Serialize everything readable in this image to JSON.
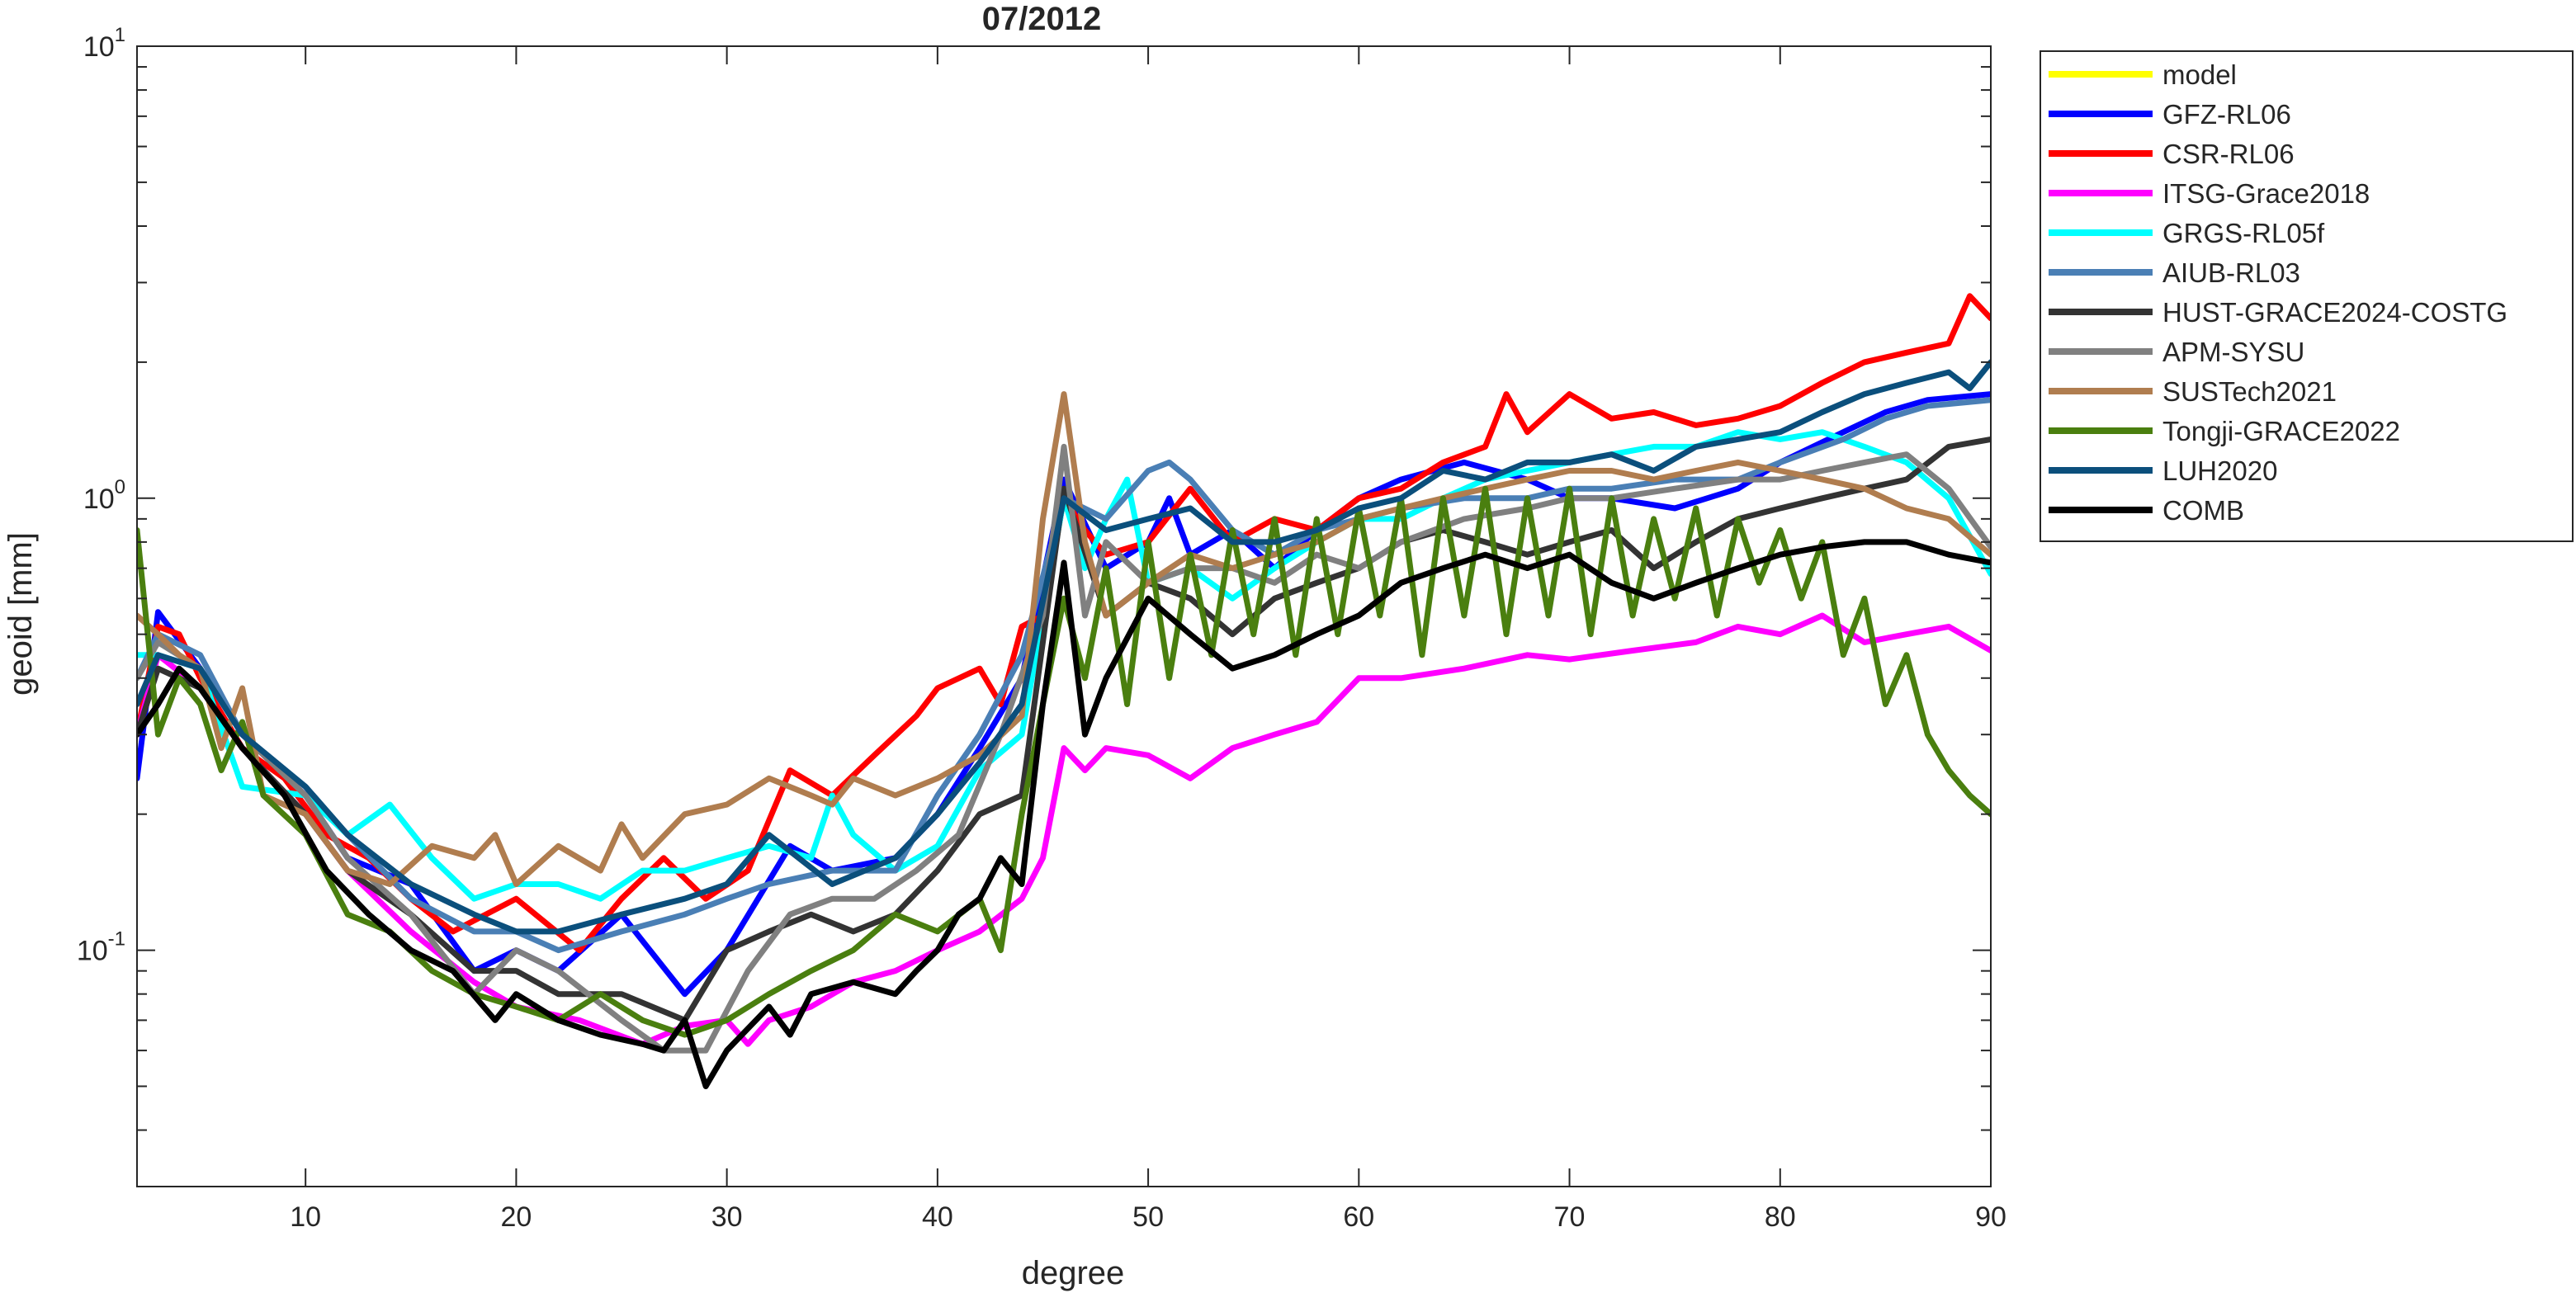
{
  "chart_data": {
    "type": "line",
    "title": "07/2012",
    "xlabel": "degree",
    "ylabel": "geoid [mm]",
    "xlim": [
      2,
      90
    ],
    "ylim": [
      0.03,
      10
    ],
    "yscale": "log",
    "grid": false,
    "legend_position": "outside-right-top",
    "xticks": [
      {
        "value": 10,
        "label": "10"
      },
      {
        "value": 20,
        "label": "20"
      },
      {
        "value": 30,
        "label": "30"
      },
      {
        "value": 40,
        "label": "40"
      },
      {
        "value": 50,
        "label": "50"
      },
      {
        "value": 60,
        "label": "60"
      },
      {
        "value": 70,
        "label": "70"
      },
      {
        "value": 80,
        "label": "80"
      },
      {
        "value": 90,
        "label": "90"
      }
    ],
    "yticks": [
      {
        "value": 0.1,
        "base": "10",
        "exp": "-1"
      },
      {
        "value": 1,
        "base": "10",
        "exp": "0"
      },
      {
        "value": 10,
        "base": "10",
        "exp": "1"
      }
    ],
    "series": [
      {
        "name": "model",
        "color": "#FFFF00",
        "x": [],
        "y": []
      },
      {
        "name": "GFZ-RL06",
        "color": "#0000FF",
        "x": [
          2,
          3,
          5,
          7,
          10,
          12,
          15,
          18,
          20,
          22,
          25,
          28,
          30,
          33,
          35,
          38,
          40,
          42,
          44,
          46,
          48,
          50,
          51,
          52,
          54,
          56,
          58,
          60,
          62,
          65,
          68,
          70,
          72,
          75,
          78,
          80,
          83,
          85,
          87,
          90
        ],
        "y": [
          0.24,
          0.56,
          0.42,
          0.3,
          0.22,
          0.16,
          0.14,
          0.09,
          0.1,
          0.09,
          0.12,
          0.08,
          0.1,
          0.17,
          0.15,
          0.16,
          0.2,
          0.28,
          0.4,
          1.1,
          0.7,
          0.8,
          1.0,
          0.75,
          0.85,
          0.7,
          0.85,
          1.0,
          1.1,
          1.2,
          1.1,
          1.0,
          1.0,
          0.95,
          1.05,
          1.2,
          1.4,
          1.55,
          1.65,
          1.7
        ]
      },
      {
        "name": "CSR-RL06",
        "color": "#FF0000",
        "x": [
          2,
          3,
          4,
          5,
          7,
          9,
          11,
          13,
          15,
          17,
          20,
          23,
          25,
          27,
          29,
          31,
          33,
          35,
          37,
          39,
          40,
          42,
          43,
          44,
          45,
          46,
          47,
          48,
          50,
          52,
          54,
          56,
          58,
          60,
          62,
          64,
          66,
          67,
          68,
          70,
          72,
          74,
          76,
          78,
          80,
          82,
          84,
          86,
          88,
          89,
          90
        ],
        "y": [
          0.3,
          0.52,
          0.5,
          0.4,
          0.28,
          0.24,
          0.18,
          0.16,
          0.13,
          0.11,
          0.13,
          0.1,
          0.13,
          0.16,
          0.13,
          0.15,
          0.25,
          0.22,
          0.27,
          0.33,
          0.38,
          0.42,
          0.35,
          0.52,
          0.55,
          1.0,
          0.85,
          0.75,
          0.8,
          1.05,
          0.8,
          0.9,
          0.85,
          1.0,
          1.05,
          1.2,
          1.3,
          1.7,
          1.4,
          1.7,
          1.5,
          1.55,
          1.45,
          1.5,
          1.6,
          1.8,
          2.0,
          2.1,
          2.2,
          2.8,
          2.5
        ]
      },
      {
        "name": "ITSG-Grace2018",
        "color": "#FF00FF",
        "x": [
          2,
          3,
          5,
          7,
          10,
          12,
          15,
          18,
          20,
          23,
          26,
          28,
          30,
          31,
          32,
          34,
          36,
          38,
          40,
          42,
          44,
          45,
          46,
          47,
          48,
          50,
          52,
          54,
          56,
          58,
          60,
          62,
          65,
          68,
          70,
          73,
          76,
          78,
          80,
          82,
          84,
          86,
          88,
          90
        ],
        "y": [
          0.3,
          0.45,
          0.38,
          0.28,
          0.2,
          0.15,
          0.11,
          0.085,
          0.075,
          0.07,
          0.062,
          0.068,
          0.07,
          0.062,
          0.07,
          0.075,
          0.085,
          0.09,
          0.1,
          0.11,
          0.13,
          0.16,
          0.28,
          0.25,
          0.28,
          0.27,
          0.24,
          0.28,
          0.3,
          0.32,
          0.4,
          0.4,
          0.42,
          0.45,
          0.44,
          0.46,
          0.48,
          0.52,
          0.5,
          0.55,
          0.48,
          0.5,
          0.52,
          0.46
        ]
      },
      {
        "name": "GRGS-RL05f",
        "color": "#00FFFF",
        "x": [
          2,
          3,
          5,
          7,
          10,
          12,
          14,
          16,
          18,
          20,
          22,
          24,
          26,
          28,
          30,
          32,
          34,
          35,
          36,
          38,
          40,
          42,
          44,
          46,
          47,
          48,
          49,
          50,
          52,
          54,
          56,
          58,
          60,
          62,
          64,
          66,
          68,
          70,
          72,
          74,
          76,
          78,
          80,
          82,
          84,
          86,
          88,
          90
        ],
        "y": [
          0.45,
          0.45,
          0.42,
          0.23,
          0.22,
          0.18,
          0.21,
          0.16,
          0.13,
          0.14,
          0.14,
          0.13,
          0.15,
          0.15,
          0.16,
          0.17,
          0.16,
          0.22,
          0.18,
          0.15,
          0.17,
          0.25,
          0.3,
          1.0,
          0.7,
          0.9,
          1.1,
          0.65,
          0.7,
          0.6,
          0.7,
          0.8,
          0.9,
          0.9,
          1.0,
          1.1,
          1.15,
          1.2,
          1.25,
          1.3,
          1.3,
          1.4,
          1.35,
          1.4,
          1.3,
          1.2,
          1.0,
          0.68
        ]
      },
      {
        "name": "AIUB-RL03",
        "color": "#4A7FB5",
        "x": [
          2,
          3,
          5,
          7,
          10,
          12,
          15,
          18,
          20,
          22,
          25,
          28,
          30,
          32,
          35,
          38,
          40,
          42,
          44,
          46,
          48,
          50,
          51,
          52,
          54,
          56,
          58,
          60,
          62,
          65,
          68,
          70,
          72,
          75,
          78,
          80,
          83,
          85,
          87,
          90
        ],
        "y": [
          0.4,
          0.5,
          0.45,
          0.3,
          0.23,
          0.18,
          0.13,
          0.11,
          0.11,
          0.1,
          0.11,
          0.12,
          0.13,
          0.14,
          0.15,
          0.15,
          0.22,
          0.3,
          0.45,
          1.0,
          0.9,
          1.15,
          1.2,
          1.1,
          0.85,
          0.75,
          0.85,
          0.9,
          0.95,
          1.0,
          1.0,
          1.05,
          1.05,
          1.1,
          1.1,
          1.2,
          1.35,
          1.5,
          1.6,
          1.65
        ]
      },
      {
        "name": "HUST-GRACE2024-COSTG",
        "color": "#333333",
        "x": [
          2,
          3,
          5,
          7,
          10,
          12,
          15,
          18,
          20,
          22,
          25,
          28,
          30,
          32,
          34,
          36,
          38,
          40,
          42,
          44,
          46,
          48,
          50,
          52,
          54,
          56,
          58,
          60,
          62,
          64,
          66,
          68,
          70,
          72,
          74,
          76,
          78,
          80,
          82,
          84,
          86,
          88,
          90
        ],
        "y": [
          0.3,
          0.42,
          0.38,
          0.28,
          0.2,
          0.15,
          0.12,
          0.09,
          0.09,
          0.08,
          0.08,
          0.07,
          0.1,
          0.11,
          0.12,
          0.11,
          0.12,
          0.15,
          0.2,
          0.22,
          1.05,
          0.55,
          0.65,
          0.6,
          0.5,
          0.6,
          0.65,
          0.7,
          0.8,
          0.85,
          0.8,
          0.75,
          0.8,
          0.85,
          0.7,
          0.8,
          0.9,
          0.95,
          1.0,
          1.05,
          1.1,
          1.3,
          1.35
        ]
      },
      {
        "name": "APM-SYSU",
        "color": "#808080",
        "x": [
          2,
          3,
          5,
          7,
          10,
          12,
          15,
          18,
          20,
          22,
          25,
          27,
          29,
          31,
          33,
          35,
          37,
          39,
          41,
          43,
          45,
          46,
          47,
          48,
          50,
          52,
          54,
          56,
          58,
          60,
          62,
          65,
          68,
          70,
          72,
          75,
          78,
          80,
          82,
          84,
          86,
          88,
          90
        ],
        "y": [
          0.4,
          0.48,
          0.42,
          0.3,
          0.22,
          0.16,
          0.12,
          0.08,
          0.1,
          0.09,
          0.07,
          0.06,
          0.06,
          0.09,
          0.12,
          0.13,
          0.13,
          0.15,
          0.18,
          0.3,
          0.55,
          1.3,
          0.55,
          0.8,
          0.65,
          0.7,
          0.7,
          0.65,
          0.75,
          0.7,
          0.8,
          0.9,
          0.95,
          1.0,
          1.0,
          1.05,
          1.1,
          1.1,
          1.15,
          1.2,
          1.25,
          1.05,
          0.78
        ]
      },
      {
        "name": "SUSTech2021",
        "color": "#B07D4F",
        "x": [
          2,
          3,
          4,
          5,
          6,
          7,
          8,
          10,
          12,
          14,
          16,
          18,
          19,
          20,
          22,
          24,
          25,
          26,
          28,
          30,
          32,
          34,
          35,
          36,
          38,
          40,
          42,
          44,
          45,
          46,
          47,
          48,
          50,
          52,
          54,
          56,
          58,
          60,
          62,
          64,
          66,
          68,
          70,
          72,
          74,
          76,
          78,
          80,
          82,
          84,
          86,
          88,
          90
        ],
        "y": [
          0.55,
          0.5,
          0.45,
          0.42,
          0.28,
          0.38,
          0.22,
          0.2,
          0.15,
          0.14,
          0.17,
          0.16,
          0.18,
          0.14,
          0.17,
          0.15,
          0.19,
          0.16,
          0.2,
          0.21,
          0.24,
          0.22,
          0.21,
          0.24,
          0.22,
          0.24,
          0.27,
          0.33,
          0.9,
          1.7,
          0.8,
          0.55,
          0.65,
          0.75,
          0.7,
          0.75,
          0.8,
          0.9,
          0.95,
          1.0,
          1.05,
          1.1,
          1.15,
          1.15,
          1.1,
          1.15,
          1.2,
          1.15,
          1.1,
          1.05,
          0.95,
          0.9,
          0.75
        ]
      },
      {
        "name": "Tongji-GRACE2022",
        "color": "#4A7F0F",
        "x": [
          2,
          3,
          4,
          5,
          6,
          7,
          8,
          10,
          12,
          14,
          16,
          18,
          20,
          22,
          24,
          26,
          28,
          30,
          32,
          34,
          36,
          38,
          40,
          42,
          43,
          44,
          45,
          46,
          47,
          48,
          49,
          50,
          51,
          52,
          53,
          54,
          55,
          56,
          57,
          58,
          59,
          60,
          61,
          62,
          63,
          64,
          65,
          66,
          67,
          68,
          69,
          70,
          71,
          72,
          73,
          74,
          75,
          76,
          77,
          78,
          79,
          80,
          81,
          82,
          83,
          84,
          85,
          86,
          87,
          88,
          89,
          90
        ],
        "y": [
          0.85,
          0.3,
          0.4,
          0.35,
          0.25,
          0.32,
          0.22,
          0.18,
          0.12,
          0.11,
          0.09,
          0.08,
          0.075,
          0.07,
          0.08,
          0.07,
          0.065,
          0.07,
          0.08,
          0.09,
          0.1,
          0.12,
          0.11,
          0.13,
          0.1,
          0.2,
          0.35,
          0.6,
          0.4,
          0.7,
          0.35,
          0.8,
          0.4,
          0.75,
          0.45,
          0.85,
          0.5,
          0.9,
          0.45,
          0.9,
          0.5,
          0.95,
          0.55,
          1.0,
          0.45,
          1.0,
          0.55,
          1.05,
          0.5,
          1.0,
          0.55,
          1.05,
          0.5,
          1.0,
          0.55,
          0.9,
          0.6,
          0.95,
          0.55,
          0.9,
          0.65,
          0.85,
          0.6,
          0.8,
          0.45,
          0.6,
          0.35,
          0.45,
          0.3,
          0.25,
          0.22,
          0.2
        ]
      },
      {
        "name": "LUH2020",
        "color": "#0B4F7C",
        "x": [
          2,
          3,
          5,
          7,
          10,
          12,
          15,
          18,
          20,
          22,
          25,
          28,
          30,
          32,
          35,
          38,
          40,
          42,
          44,
          46,
          48,
          50,
          52,
          54,
          56,
          58,
          60,
          62,
          64,
          66,
          68,
          70,
          72,
          74,
          76,
          78,
          80,
          82,
          84,
          86,
          88,
          89,
          90
        ],
        "y": [
          0.35,
          0.45,
          0.42,
          0.3,
          0.23,
          0.18,
          0.14,
          0.12,
          0.11,
          0.11,
          0.12,
          0.13,
          0.14,
          0.18,
          0.14,
          0.16,
          0.2,
          0.26,
          0.35,
          1.0,
          0.85,
          0.9,
          0.95,
          0.8,
          0.8,
          0.85,
          0.95,
          1.0,
          1.15,
          1.1,
          1.2,
          1.2,
          1.25,
          1.15,
          1.3,
          1.35,
          1.4,
          1.55,
          1.7,
          1.8,
          1.9,
          1.75,
          2.0
        ]
      },
      {
        "name": "COMB",
        "color": "#000000",
        "x": [
          2,
          3,
          4,
          5,
          7,
          9,
          11,
          13,
          15,
          17,
          19,
          20,
          22,
          24,
          26,
          27,
          28,
          29,
          30,
          32,
          33,
          34,
          36,
          38,
          39,
          40,
          41,
          42,
          43,
          44,
          45,
          46,
          47,
          48,
          50,
          52,
          54,
          56,
          58,
          60,
          62,
          64,
          66,
          68,
          70,
          72,
          74,
          76,
          78,
          80,
          82,
          84,
          86,
          88,
          90
        ],
        "y": [
          0.3,
          0.35,
          0.42,
          0.38,
          0.28,
          0.22,
          0.15,
          0.12,
          0.1,
          0.09,
          0.07,
          0.08,
          0.07,
          0.065,
          0.062,
          0.06,
          0.07,
          0.05,
          0.06,
          0.075,
          0.065,
          0.08,
          0.085,
          0.08,
          0.09,
          0.1,
          0.12,
          0.13,
          0.16,
          0.14,
          0.35,
          0.72,
          0.3,
          0.4,
          0.6,
          0.5,
          0.42,
          0.45,
          0.5,
          0.55,
          0.65,
          0.7,
          0.75,
          0.7,
          0.75,
          0.65,
          0.6,
          0.65,
          0.7,
          0.75,
          0.78,
          0.8,
          0.8,
          0.75,
          0.72
        ]
      }
    ]
  }
}
